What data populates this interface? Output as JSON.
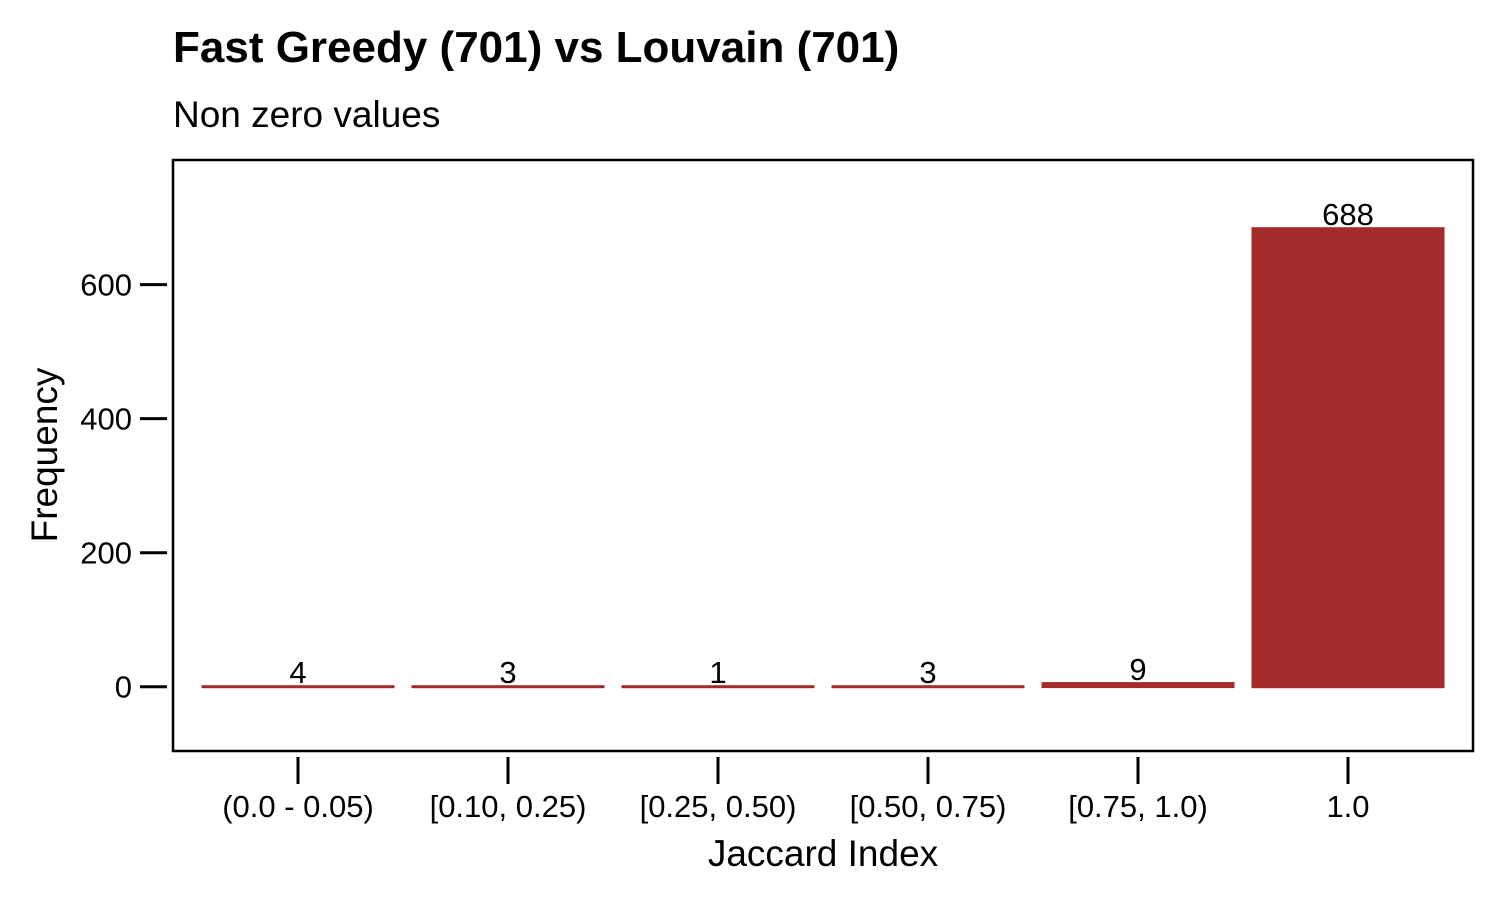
{
  "chart_data": {
    "type": "bar",
    "title": "Fast Greedy (701) vs Louvain (701)",
    "subtitle": "Non zero values",
    "xlabel": "Jaccard Index",
    "ylabel": "Frequency",
    "categories": [
      "(0.0 - 0.05)",
      "[0.10, 0.25)",
      "[0.25, 0.50)",
      "[0.50, 0.75)",
      "[0.75, 1.0)",
      "1.0"
    ],
    "values": [
      4,
      3,
      1,
      3,
      9,
      688
    ],
    "data_labels": [
      "4",
      "3",
      "1",
      "3",
      "9",
      "688"
    ],
    "yticks": [
      0,
      200,
      400,
      600
    ],
    "ytick_labels": [
      "0",
      "200",
      "400",
      "600"
    ],
    "ylim": [
      -96,
      786
    ],
    "grid": false,
    "legend": "none",
    "bar_color": "#a52a2a"
  }
}
